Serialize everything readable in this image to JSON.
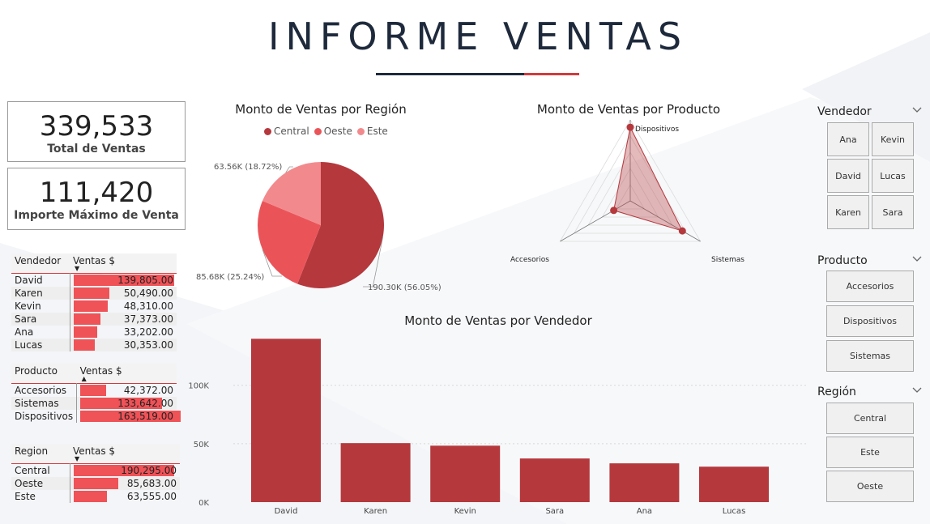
{
  "header": {
    "title": "INFORME VENTAS"
  },
  "kpis": [
    {
      "value": "339,533",
      "label": "Total de Ventas"
    },
    {
      "value": "111,420",
      "label": "Importe Máximo de Venta"
    }
  ],
  "tables": {
    "vendedor": {
      "col1": "Vendedor",
      "col2": "Ventas $",
      "sort": "desc",
      "rows": [
        {
          "name": "David",
          "value": 139805,
          "display": "139,805.00"
        },
        {
          "name": "Karen",
          "value": 50490,
          "display": "50,490.00"
        },
        {
          "name": "Kevin",
          "value": 48310,
          "display": "48,310.00"
        },
        {
          "name": "Sara",
          "value": 37373,
          "display": "37,373.00"
        },
        {
          "name": "Ana",
          "value": 33202,
          "display": "33,202.00"
        },
        {
          "name": "Lucas",
          "value": 30353,
          "display": "30,353.00"
        }
      ]
    },
    "producto": {
      "col1": "Producto",
      "col2": "Ventas $",
      "sort": "asc",
      "rows": [
        {
          "name": "Accesorios",
          "value": 42372,
          "display": "42,372.00"
        },
        {
          "name": "Sistemas",
          "value": 133642,
          "display": "133,642.00"
        },
        {
          "name": "Dispositivos",
          "value": 163519,
          "display": "163,519.00"
        }
      ]
    },
    "region": {
      "col1": "Region",
      "col2": "Ventas $",
      "sort": "desc",
      "rows": [
        {
          "name": "Central",
          "value": 190295,
          "display": "190,295.00"
        },
        {
          "name": "Oeste",
          "value": 85683,
          "display": "85,683.00"
        },
        {
          "name": "Este",
          "value": 63555,
          "display": "63,555.00"
        }
      ]
    }
  },
  "chart_data": [
    {
      "type": "pie",
      "title": "Monto de Ventas por Región",
      "legend_position": "top",
      "slices": [
        {
          "name": "Central",
          "value": 190.3,
          "label": "190.30K (56.05%)",
          "color": "#b5383d"
        },
        {
          "name": "Oeste",
          "value": 85.68,
          "label": "85.68K (25.24%)",
          "color": "#ea5459"
        },
        {
          "name": "Este",
          "value": 63.56,
          "label": "63.56K (18.72%)",
          "color": "#f28a8d"
        }
      ]
    },
    {
      "type": "radar",
      "title": "Monto de Ventas por Producto",
      "categories": [
        "Dispositivos",
        "Sistemas",
        "Accesorios"
      ],
      "values": [
        163519,
        133642,
        42372
      ],
      "color": "#b5383d"
    },
    {
      "type": "bar",
      "title": "Monto de Ventas por Vendedor",
      "categories": [
        "David",
        "Karen",
        "Kevin",
        "Sara",
        "Ana",
        "Lucas"
      ],
      "values": [
        139805,
        50490,
        48310,
        37373,
        33202,
        30353
      ],
      "yticks": [
        "0K",
        "50K",
        "100K"
      ],
      "ylim": [
        0,
        140000
      ],
      "grid": true,
      "color": "#b5383d"
    }
  ],
  "slicers": {
    "vendedor": {
      "title": "Vendedor",
      "items": [
        "Ana",
        "Kevin",
        "David",
        "Lucas",
        "Karen",
        "Sara"
      ]
    },
    "producto": {
      "title": "Producto",
      "items": [
        "Accesorios",
        "Dispositivos",
        "Sistemas"
      ]
    },
    "region": {
      "title": "Región",
      "items": [
        "Central",
        "Este",
        "Oeste"
      ]
    }
  },
  "icons": {
    "chevron": "chevron-down-icon"
  }
}
